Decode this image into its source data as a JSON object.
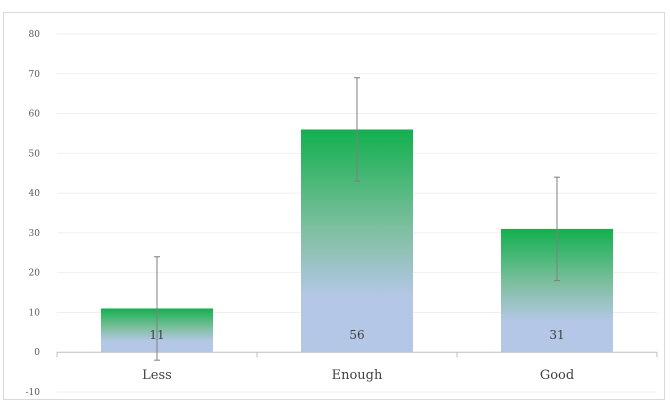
{
  "chart_data": {
    "type": "bar",
    "title": "",
    "xlabel": "",
    "ylabel": "",
    "categories": [
      "Less",
      "Enough",
      "Good"
    ],
    "values": [
      11,
      56,
      31
    ],
    "error_bars": [
      13,
      13,
      13
    ],
    "data_labels": [
      "11",
      "56",
      "31"
    ],
    "ylim": [
      -10,
      80
    ],
    "yticks": [
      -10,
      0,
      10,
      20,
      30,
      40,
      50,
      60,
      70,
      80
    ],
    "grid": true,
    "legend": "none",
    "colors": {
      "bar_top": "#12b04e",
      "bar_mid": "#7fbfa0",
      "bar_bottom": "#b4c7e7",
      "gridline": "#efefef",
      "axis": "#bfbfbf",
      "error_bar": "#7f7f7f"
    }
  }
}
